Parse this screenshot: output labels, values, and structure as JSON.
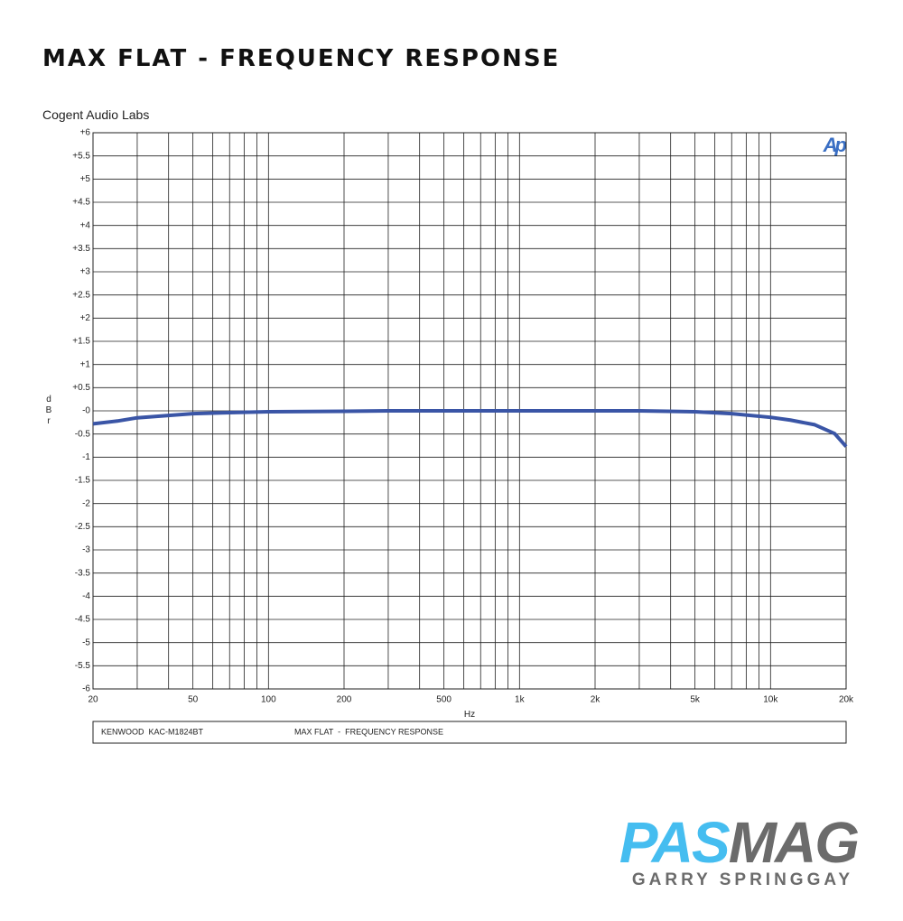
{
  "header": {
    "title": "MAX FLAT - FREQUENCY RESPONSE"
  },
  "chart_data": {
    "type": "line",
    "subtitle": "Cogent Audio Labs",
    "ylabel": "dBr",
    "xlabel": "Hz",
    "logo": "Ap",
    "footer": [
      "KENWOOD  KAC-M1824BT",
      "MAX FLAT  -  FREQUENCY RESPONSE"
    ],
    "xscale": "log",
    "grid": true,
    "xlim": [
      20,
      20000
    ],
    "ylim": [
      -6,
      6
    ],
    "x": [
      20,
      25,
      30,
      40,
      50,
      70,
      100,
      200,
      300,
      1000,
      3000,
      5000,
      7000,
      10000,
      12000,
      15000,
      18000,
      20000
    ],
    "series": [
      {
        "color": "#3a55a6",
        "values": [
          -0.28,
          -0.22,
          -0.15,
          -0.1,
          -0.06,
          -0.04,
          -0.02,
          -0.01,
          0,
          0,
          0,
          -0.02,
          -0.06,
          -0.14,
          -0.2,
          -0.3,
          -0.49,
          -0.77
        ]
      }
    ],
    "xticks": [
      20,
      50,
      100,
      200,
      500,
      {
        "value": 1000,
        "label": "1k"
      },
      {
        "value": 2000,
        "label": "2k"
      },
      {
        "value": 5000,
        "label": "5k"
      },
      {
        "value": 10000,
        "label": "10k"
      },
      {
        "value": 20000,
        "label": "20k"
      }
    ],
    "xgrid": [
      30,
      40,
      60,
      70,
      80,
      90,
      300,
      400,
      600,
      700,
      800,
      900,
      3000,
      4000,
      6000,
      7000,
      8000,
      9000
    ],
    "yticks": [
      {
        "value": 6,
        "label": "+6"
      },
      {
        "value": 5.5,
        "label": "+5.5"
      },
      {
        "value": 5,
        "label": "+5"
      },
      {
        "value": 4.5,
        "label": "+4.5"
      },
      {
        "value": 4,
        "label": "+4"
      },
      {
        "value": 3.5,
        "label": "+3.5"
      },
      {
        "value": 3,
        "label": "+3"
      },
      {
        "value": 2.5,
        "label": "+2.5"
      },
      {
        "value": 2,
        "label": "+2"
      },
      {
        "value": 1.5,
        "label": "+1.5"
      },
      {
        "value": 1,
        "label": "+1"
      },
      {
        "value": 0.5,
        "label": "+0.5"
      },
      {
        "value": 0,
        "label": "-0"
      },
      {
        "value": -0.5,
        "label": "-0.5"
      },
      {
        "value": -1,
        "label": "-1"
      },
      {
        "value": -1.5,
        "label": "-1.5"
      },
      {
        "value": -2,
        "label": "-2"
      },
      {
        "value": -2.5,
        "label": "-2.5"
      },
      {
        "value": -3,
        "label": "-3"
      },
      {
        "value": -3.5,
        "label": "-3.5"
      },
      {
        "value": -4,
        "label": "-4"
      },
      {
        "value": -4.5,
        "label": "-4.5"
      },
      {
        "value": -5,
        "label": "-5"
      },
      {
        "value": -5.5,
        "label": "-5.5"
      },
      {
        "value": -6,
        "label": "-6"
      }
    ]
  },
  "branding": {
    "logo_parts": [
      "PAS",
      "MAG"
    ],
    "author": "GARRY SPRINGGAY"
  }
}
